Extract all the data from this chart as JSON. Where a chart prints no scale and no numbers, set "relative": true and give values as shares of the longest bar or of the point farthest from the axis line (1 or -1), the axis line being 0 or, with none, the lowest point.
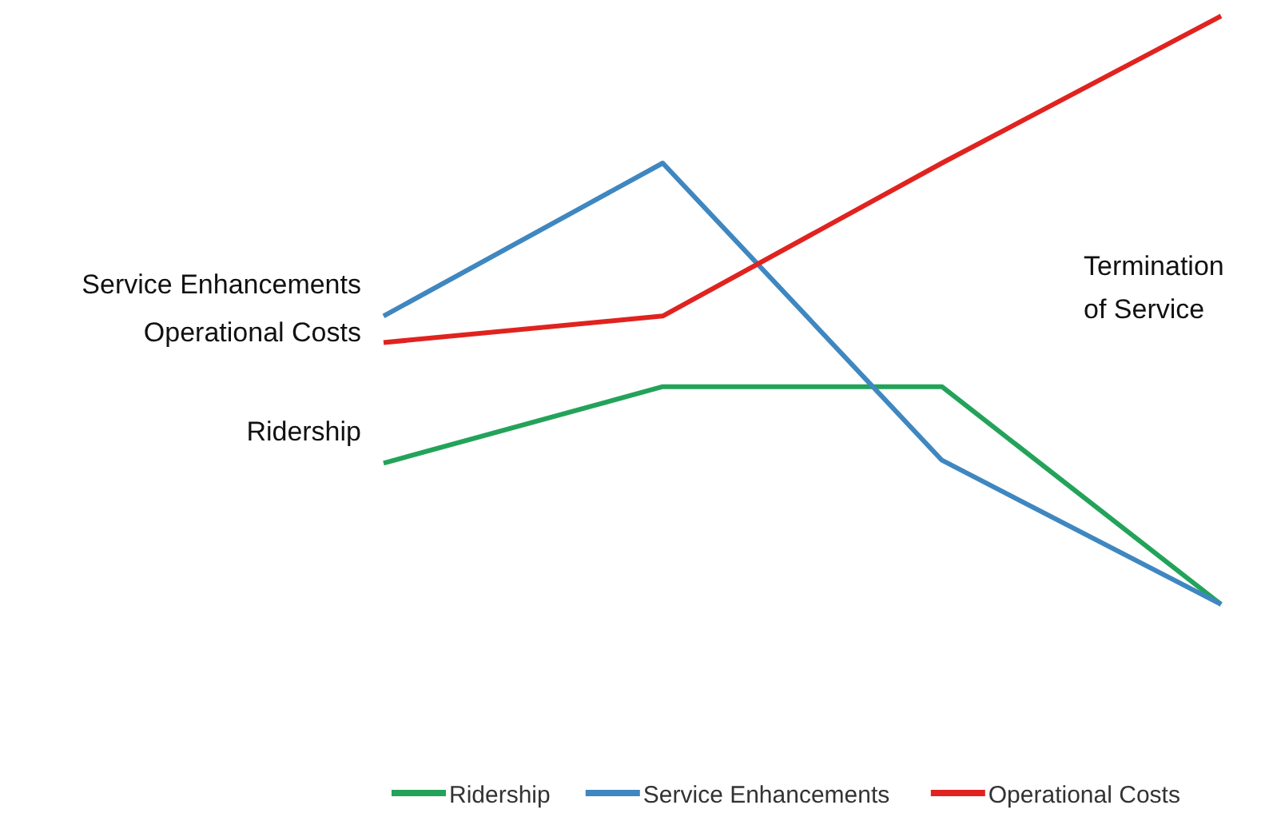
{
  "chart_data": {
    "type": "line",
    "relative": true,
    "categories": [
      null,
      null,
      null,
      null
    ],
    "series": [
      {
        "name": "Ridership",
        "color": "#23a35a",
        "values": [
          0.24,
          0.37,
          0.37,
          0
        ]
      },
      {
        "name": "Service Enhancements",
        "color": "#3f87c0",
        "values": [
          0.49,
          0.75,
          0.245,
          0
        ]
      },
      {
        "name": "Operational Costs",
        "color": "#e0231f",
        "values": [
          0.445,
          0.49,
          0.75,
          1
        ]
      }
    ],
    "annotations": [
      "Termination of Service"
    ],
    "legend": "bottom",
    "marker": "none",
    "line_style": "solid"
  }
}
